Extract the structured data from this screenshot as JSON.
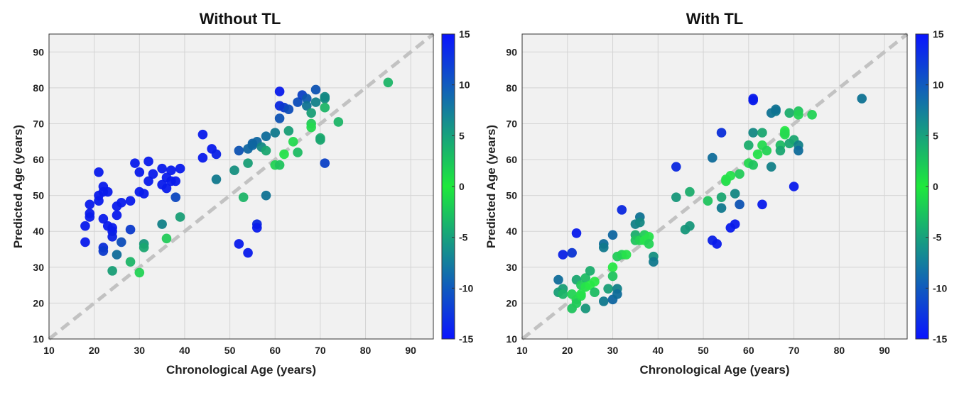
{
  "chart_data": [
    {
      "type": "scatter",
      "title": "Without TL",
      "xlabel": "Chronological Age (years)",
      "ylabel": "Predicted Age (years)",
      "xlim": [
        10,
        95
      ],
      "ylim": [
        10,
        95
      ],
      "xticks": [
        "10",
        "20",
        "30",
        "40",
        "50",
        "60",
        "70",
        "80",
        "90"
      ],
      "yticks": [
        "10",
        "20",
        "30",
        "40",
        "50",
        "60",
        "70",
        "80",
        "90"
      ],
      "identity_line": true,
      "colorbar": {
        "range": [
          -15,
          15
        ],
        "ticks": [
          "15",
          "10",
          "5",
          "0",
          "-5",
          "-10",
          "-15"
        ]
      },
      "points": [
        [
          18,
          37
        ],
        [
          18,
          41.5
        ],
        [
          19,
          44
        ],
        [
          19,
          45
        ],
        [
          19,
          47.5
        ],
        [
          21,
          48.5
        ],
        [
          21,
          50
        ],
        [
          21,
          56.5
        ],
        [
          22,
          51
        ],
        [
          22,
          52.5
        ],
        [
          22,
          43.5
        ],
        [
          22,
          35.5
        ],
        [
          22,
          34.5
        ],
        [
          23,
          51
        ],
        [
          23,
          41.5
        ],
        [
          24,
          41
        ],
        [
          24,
          40
        ],
        [
          24,
          38.5
        ],
        [
          24,
          29
        ],
        [
          25,
          47
        ],
        [
          25,
          44.5
        ],
        [
          25,
          33.5
        ],
        [
          26,
          48
        ],
        [
          26,
          37
        ],
        [
          28,
          48.5
        ],
        [
          28,
          40.5
        ],
        [
          28,
          31.5
        ],
        [
          29,
          59
        ],
        [
          30,
          56.5
        ],
        [
          30,
          51
        ],
        [
          30,
          28.5
        ],
        [
          31,
          50.5
        ],
        [
          31,
          36.5
        ],
        [
          31,
          35.5
        ],
        [
          32,
          59.5
        ],
        [
          32,
          54
        ],
        [
          33,
          56
        ],
        [
          35,
          57.5
        ],
        [
          35,
          53
        ],
        [
          35,
          42
        ],
        [
          36,
          55
        ],
        [
          36,
          52
        ],
        [
          36,
          38
        ],
        [
          37,
          57
        ],
        [
          37,
          54
        ],
        [
          38,
          54
        ],
        [
          38,
          49.5
        ],
        [
          39,
          57.5
        ],
        [
          39,
          44
        ],
        [
          44,
          67
        ],
        [
          44,
          60.5
        ],
        [
          46,
          63
        ],
        [
          47,
          61.5
        ],
        [
          47,
          54.5
        ],
        [
          51,
          57
        ],
        [
          52,
          62.5
        ],
        [
          52,
          36.5
        ],
        [
          53,
          49.5
        ],
        [
          54,
          63
        ],
        [
          54,
          59
        ],
        [
          54,
          34
        ],
        [
          55,
          64.5
        ],
        [
          55,
          64
        ],
        [
          56,
          65
        ],
        [
          56,
          42
        ],
        [
          56,
          41
        ],
        [
          57,
          63.5
        ],
        [
          58,
          66.5
        ],
        [
          58,
          62.5
        ],
        [
          58,
          50
        ],
        [
          60,
          67.5
        ],
        [
          60,
          58.5
        ],
        [
          61,
          79
        ],
        [
          61,
          75
        ],
        [
          61,
          71.5
        ],
        [
          61,
          58.5
        ],
        [
          62,
          74.5
        ],
        [
          62,
          61.5
        ],
        [
          63,
          68
        ],
        [
          63,
          74
        ],
        [
          64,
          65
        ],
        [
          65,
          62
        ],
        [
          65,
          76
        ],
        [
          66,
          78
        ],
        [
          67,
          77
        ],
        [
          67,
          75
        ],
        [
          68,
          73
        ],
        [
          68,
          70
        ],
        [
          68,
          69
        ],
        [
          69,
          79.5
        ],
        [
          69,
          76
        ],
        [
          70,
          66
        ],
        [
          70,
          65.5
        ],
        [
          71,
          77
        ],
        [
          71,
          77.5
        ],
        [
          71,
          74.5
        ],
        [
          71,
          59
        ],
        [
          74,
          70.5
        ],
        [
          85,
          81.5
        ]
      ]
    },
    {
      "type": "scatter",
      "title": "With TL",
      "xlabel": "Chronological Age (years)",
      "ylabel": "Predicted Age (years)",
      "xlim": [
        10,
        95
      ],
      "ylim": [
        10,
        95
      ],
      "xticks": [
        "10",
        "20",
        "30",
        "40",
        "50",
        "60",
        "70",
        "80",
        "90"
      ],
      "yticks": [
        "10",
        "20",
        "30",
        "40",
        "50",
        "60",
        "70",
        "80",
        "90"
      ],
      "identity_line": true,
      "colorbar": {
        "range": [
          -15,
          15
        ],
        "ticks": [
          "15",
          "10",
          "5",
          "0",
          "-5",
          "-10",
          "-15"
        ]
      },
      "points": [
        [
          18,
          26.5
        ],
        [
          18,
          23
        ],
        [
          19,
          33.5
        ],
        [
          19,
          24
        ],
        [
          19,
          22.5
        ],
        [
          21,
          34
        ],
        [
          21,
          22.5
        ],
        [
          21,
          18.5
        ],
        [
          22,
          39.5
        ],
        [
          22,
          26.5
        ],
        [
          22,
          21
        ],
        [
          22,
          20
        ],
        [
          23,
          25
        ],
        [
          23,
          22
        ],
        [
          23,
          22.5
        ],
        [
          24,
          27
        ],
        [
          24,
          18.5
        ],
        [
          24,
          24.5
        ],
        [
          25,
          29
        ],
        [
          25,
          25
        ],
        [
          26,
          26
        ],
        [
          26,
          23
        ],
        [
          28,
          36.5
        ],
        [
          28,
          35.5
        ],
        [
          28,
          20.5
        ],
        [
          29,
          24
        ],
        [
          30,
          39
        ],
        [
          30,
          30
        ],
        [
          30,
          27.5
        ],
        [
          30,
          21
        ],
        [
          31,
          24
        ],
        [
          31,
          22.5
        ],
        [
          31,
          33
        ],
        [
          32,
          46
        ],
        [
          32,
          33.5
        ],
        [
          33,
          33.5
        ],
        [
          35,
          42
        ],
        [
          35,
          39
        ],
        [
          35,
          37.5
        ],
        [
          36,
          44
        ],
        [
          36,
          42.5
        ],
        [
          36,
          37.5
        ],
        [
          37,
          39
        ],
        [
          37,
          37.5
        ],
        [
          38,
          38.5
        ],
        [
          38,
          36.5
        ],
        [
          39,
          33
        ],
        [
          39,
          31.5
        ],
        [
          44,
          58
        ],
        [
          44,
          49.5
        ],
        [
          46,
          40.5
        ],
        [
          47,
          51
        ],
        [
          47,
          41.5
        ],
        [
          51,
          48.5
        ],
        [
          52,
          60.5
        ],
        [
          52,
          37.5
        ],
        [
          53,
          36.5
        ],
        [
          54,
          67.5
        ],
        [
          54,
          49.5
        ],
        [
          54,
          46.5
        ],
        [
          55,
          54
        ],
        [
          55,
          54.5
        ],
        [
          56,
          55.5
        ],
        [
          56,
          41
        ],
        [
          57,
          50.5
        ],
        [
          57,
          42
        ],
        [
          58,
          56
        ],
        [
          58,
          47.5
        ],
        [
          60,
          64
        ],
        [
          60,
          59
        ],
        [
          61,
          77
        ],
        [
          61,
          76.5
        ],
        [
          61,
          67.5
        ],
        [
          61,
          58.5
        ],
        [
          62,
          61.5
        ],
        [
          63,
          67.5
        ],
        [
          63,
          64
        ],
        [
          63,
          47.5
        ],
        [
          64,
          62.5
        ],
        [
          65,
          73
        ],
        [
          65,
          58
        ],
        [
          66,
          73.5
        ],
        [
          66,
          74
        ],
        [
          67,
          64
        ],
        [
          67,
          62.5
        ],
        [
          68,
          68
        ],
        [
          68,
          67.5
        ],
        [
          68,
          67
        ],
        [
          69,
          73
        ],
        [
          69,
          64.5
        ],
        [
          70,
          65.5
        ],
        [
          70,
          52.5
        ],
        [
          71,
          73.5
        ],
        [
          71,
          72.5
        ],
        [
          71,
          64
        ],
        [
          71,
          62.5
        ],
        [
          74,
          72.5
        ],
        [
          85,
          77
        ]
      ]
    }
  ]
}
